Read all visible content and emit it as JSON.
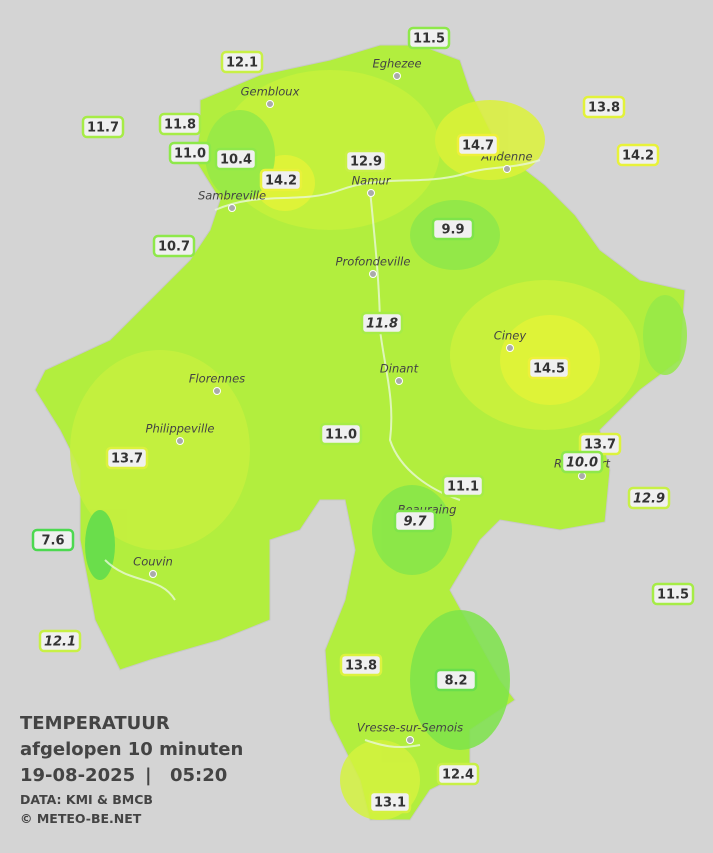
{
  "title": {
    "heading": "TEMPERATUUR",
    "subtitle": "afgelopen 10 minuten",
    "date": "19-08-2025",
    "separator": "|",
    "time": "05:20",
    "source": "DATA: KMI & BMCB",
    "credit": "© METEO-BE.NET"
  },
  "places": [
    "Eghezee",
    "Gembloux",
    "Andenne",
    "Namur",
    "Sambreville",
    "Profondeville",
    "Ciney",
    "Dinant",
    "Florennes",
    "Philippeville",
    "Rochefort",
    "Beauraing",
    "Couvin",
    "Vresse-sur-Semois"
  ],
  "stations": [
    {
      "label": "11.5",
      "color": "#8ee84a",
      "italic": false
    },
    {
      "label": "12.1",
      "color": "#c8f046",
      "italic": false
    },
    {
      "label": "13.8",
      "color": "#e2f23a",
      "italic": false
    },
    {
      "label": "11.7",
      "color": "#a6ec46",
      "italic": false
    },
    {
      "label": "11.8",
      "color": "#a6ec46",
      "italic": false
    },
    {
      "label": "14.7",
      "color": "#eef03a",
      "italic": false
    },
    {
      "label": "14.2",
      "color": "#e8f23a",
      "italic": false
    },
    {
      "label": "11.0",
      "color": "#8ee84a",
      "italic": false
    },
    {
      "label": "10.4",
      "color": "#8ee84a",
      "italic": false
    },
    {
      "label": "12.9",
      "color": "#c8f046",
      "italic": false
    },
    {
      "label": "14.2",
      "color": "#e8f23a",
      "italic": false
    },
    {
      "label": "9.9",
      "color": "#7ee44a",
      "italic": false
    },
    {
      "label": "10.7",
      "color": "#8ee84a",
      "italic": false
    },
    {
      "label": "11.8",
      "color": "#a6ec46",
      "italic": true
    },
    {
      "label": "14.5",
      "color": "#eef03a",
      "italic": false
    },
    {
      "label": "11.0",
      "color": "#a6ec46",
      "italic": false
    },
    {
      "label": "13.7",
      "color": "#dcf23e",
      "italic": false
    },
    {
      "label": "10.0",
      "color": "#8ee84a",
      "italic": true
    },
    {
      "label": "13.7",
      "color": "#dcf23e",
      "italic": false
    },
    {
      "label": "11.1",
      "color": "#a6ec46",
      "italic": false
    },
    {
      "label": "12.9",
      "color": "#c8f046",
      "italic": true
    },
    {
      "label": "9.7",
      "color": "#7ee44a",
      "italic": true
    },
    {
      "label": "7.6",
      "color": "#4cd850",
      "italic": false
    },
    {
      "label": "11.5",
      "color": "#a6ec46",
      "italic": false
    },
    {
      "label": "12.1",
      "color": "#c8f046",
      "italic": true
    },
    {
      "label": "13.8",
      "color": "#dcf23e",
      "italic": false
    },
    {
      "label": "8.2",
      "color": "#6ade4c",
      "italic": false
    },
    {
      "label": "12.4",
      "color": "#c8f046",
      "italic": false
    },
    {
      "label": "13.1",
      "color": "#d4f040",
      "italic": false
    }
  ]
}
